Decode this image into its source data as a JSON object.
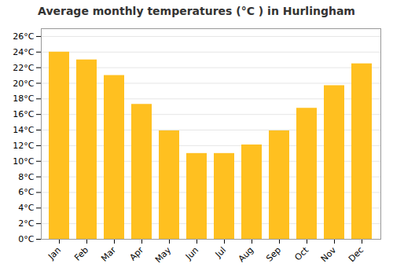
{
  "chart_data": {
    "type": "bar",
    "title": "Average monthly temperatures (°C ) in Hurlingham",
    "categories": [
      "Jan",
      "Feb",
      "Mar",
      "Apr",
      "May",
      "Jun",
      "Jul",
      "Aug",
      "Sep",
      "Oct",
      "Nov",
      "Dec"
    ],
    "values": [
      24.0,
      23.0,
      21.0,
      17.3,
      13.9,
      11.0,
      11.0,
      12.1,
      13.9,
      16.8,
      19.7,
      22.5
    ],
    "color": "#FFC020",
    "ylim": [
      0,
      27
    ],
    "yticks": [
      {
        "value": 0,
        "label": "0°C"
      },
      {
        "value": 2,
        "label": "2°C"
      },
      {
        "value": 4,
        "label": "4°C"
      },
      {
        "value": 6,
        "label": "6°C"
      },
      {
        "value": 8,
        "label": "8°C"
      },
      {
        "value": 10,
        "label": "10°C"
      },
      {
        "value": 12,
        "label": "12°C"
      },
      {
        "value": 14,
        "label": "14°C"
      },
      {
        "value": 16,
        "label": "16°C"
      },
      {
        "value": 18,
        "label": "18°C"
      },
      {
        "value": 20,
        "label": "20°C"
      },
      {
        "value": 22,
        "label": "22°C"
      },
      {
        "value": 24,
        "label": "24°C"
      },
      {
        "value": 26,
        "label": "26°C"
      }
    ],
    "grid": true
  }
}
